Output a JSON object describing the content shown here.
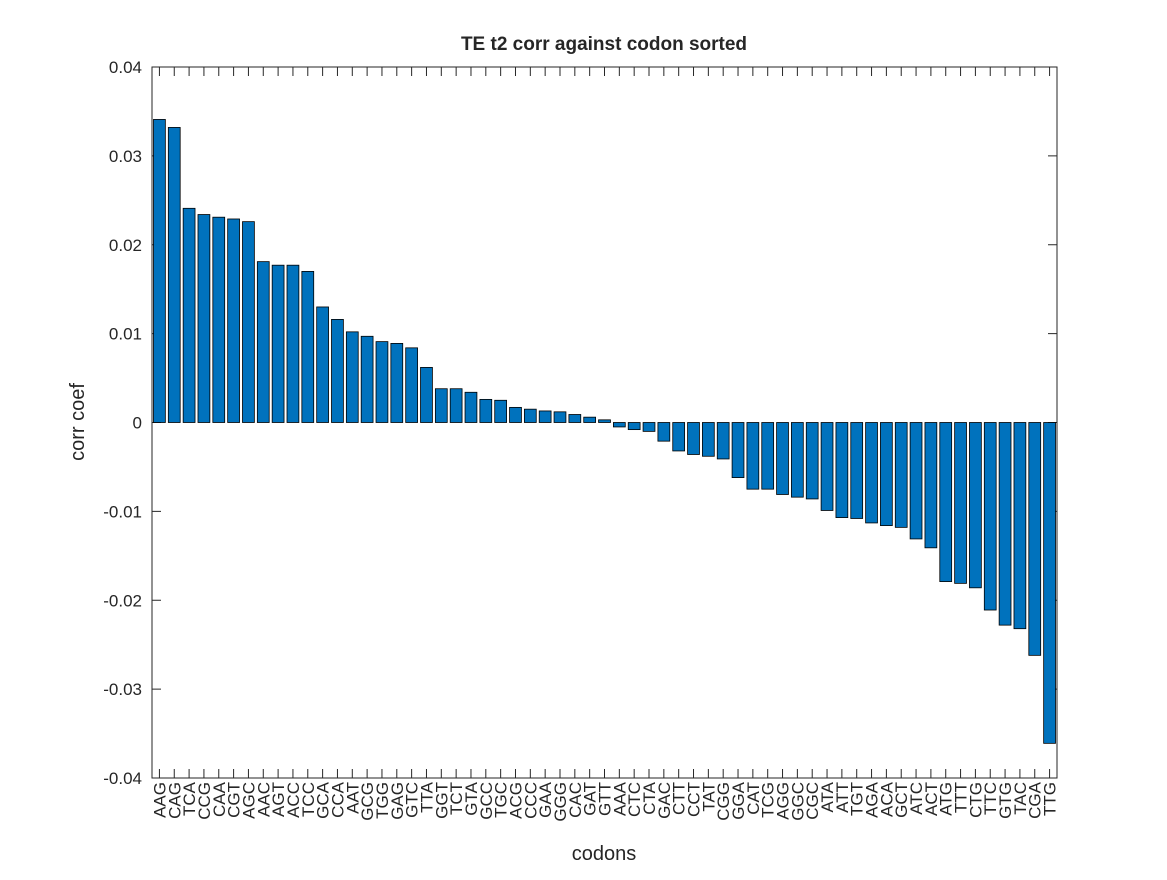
{
  "chart_data": {
    "type": "bar",
    "title": "TE t2 corr against codon sorted",
    "x_label": "codons",
    "y_label": "corr coef",
    "color": "#0072BD",
    "categories": [
      "AAG",
      "CAG",
      "TCA",
      "CCG",
      "CAA",
      "CGT",
      "AGC",
      "AAC",
      "AGT",
      "ACC",
      "TCC",
      "GCA",
      "CCA",
      "AAT",
      "GCG",
      "TGG",
      "GAG",
      "GTC",
      "TTA",
      "GGT",
      "TCT",
      "GTA",
      "GCC",
      "TGC",
      "ACG",
      "CCC",
      "GAA",
      "GGG",
      "CAC",
      "GAT",
      "GTT",
      "AAA",
      "CTC",
      "CTA",
      "GAC",
      "CTT",
      "CCT",
      "TAT",
      "CGG",
      "GGA",
      "CAT",
      "TCG",
      "AGG",
      "GGC",
      "CGC",
      "ATA",
      "ATT",
      "TGT",
      "AGA",
      "ACA",
      "GCT",
      "ATC",
      "ACT",
      "ATG",
      "TTT",
      "CTG",
      "TTC",
      "GTG",
      "TAC",
      "CGA",
      "TTG"
    ],
    "values": [
      0.0341,
      0.0332,
      0.0241,
      0.0234,
      0.0231,
      0.0229,
      0.0226,
      0.0181,
      0.0177,
      0.0177,
      0.017,
      0.013,
      0.0116,
      0.0102,
      0.0097,
      0.0091,
      0.0089,
      0.0084,
      0.0062,
      0.0038,
      0.0038,
      0.0034,
      0.0026,
      0.0025,
      0.0017,
      0.0015,
      0.0013,
      0.0012,
      0.0009,
      0.0006,
      0.0003,
      -0.0005,
      -0.0008,
      -0.001,
      -0.0021,
      -0.0032,
      -0.0036,
      -0.0038,
      -0.0041,
      -0.0062,
      -0.0075,
      -0.0075,
      -0.0081,
      -0.0084,
      -0.0086,
      -0.0099,
      -0.0107,
      -0.0108,
      -0.0113,
      -0.0116,
      -0.0118,
      -0.0131,
      -0.0141,
      -0.0179,
      -0.0181,
      -0.0186,
      -0.0211,
      -0.0228,
      -0.0232,
      -0.0262,
      -0.0361
    ],
    "ylim": [
      -0.04,
      0.04
    ],
    "yticks": [
      -0.04,
      -0.03,
      -0.02,
      -0.01,
      0,
      0.01,
      0.02,
      0.03,
      0.04
    ]
  }
}
